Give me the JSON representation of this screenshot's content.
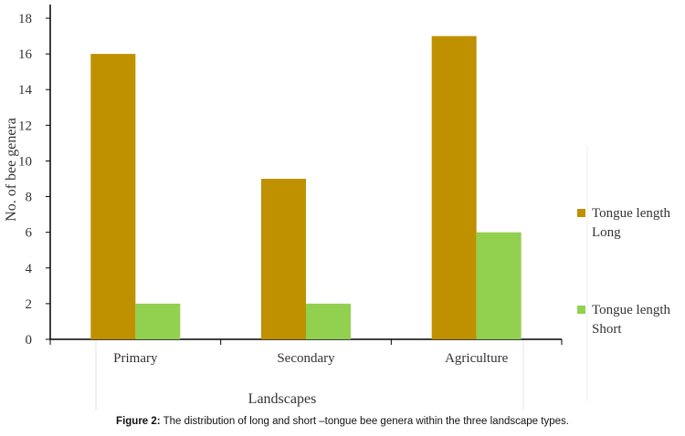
{
  "chart_data": {
    "type": "bar",
    "categories": [
      "Primary",
      "Secondary",
      "Agriculture"
    ],
    "series": [
      {
        "name": "Tongue length Long",
        "legend_lines": [
          "Tongue length",
          "Long"
        ],
        "values": [
          16,
          9,
          17
        ],
        "color": "#BF9000"
      },
      {
        "name": "Tongue length Short",
        "legend_lines": [
          "Tongue length",
          "Short"
        ],
        "values": [
          2,
          2,
          6
        ],
        "color": "#92D050"
      }
    ],
    "xlabel": "Landscapes",
    "ylabel": "No. of bee genera",
    "ylim": [
      0,
      18
    ],
    "yticks": [
      0,
      2,
      4,
      6,
      8,
      10,
      12,
      14,
      16,
      18
    ],
    "grid": false,
    "legend_position": "right"
  },
  "caption": {
    "label": "Figure 2:",
    "text": " The distribution of long and short –tongue bee genera within the three landscape types."
  }
}
